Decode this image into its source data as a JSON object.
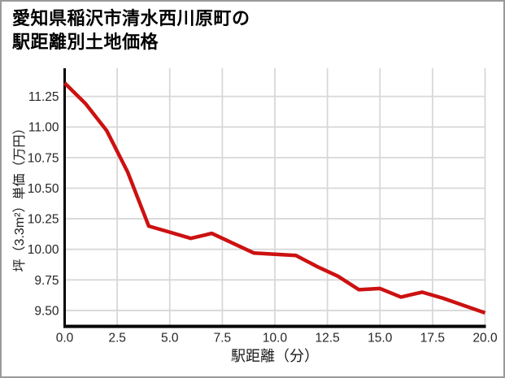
{
  "page": {
    "background": "#ffffff",
    "border_color": "#9a9a9a"
  },
  "header": {
    "title": "愛知県稲沢市清水西川原町の\n駅距離別土地価格"
  },
  "chart_data": {
    "type": "line",
    "title": "愛知県稲沢市清水西川原町の駅距離別土地価格",
    "xlabel": "駅距離（分）",
    "ylabel": "坪（3.3m²）単価（万円）",
    "x": [
      0,
      1,
      2,
      3,
      4,
      5,
      6,
      7,
      8,
      9,
      10,
      11,
      12,
      13,
      14,
      15,
      16,
      17,
      18,
      19,
      20
    ],
    "y": [
      11.36,
      11.19,
      10.97,
      10.63,
      10.19,
      10.14,
      10.09,
      10.13,
      10.05,
      9.97,
      9.96,
      9.95,
      9.86,
      9.78,
      9.67,
      9.68,
      9.61,
      9.65,
      9.6,
      9.54,
      9.48
    ],
    "xlim": [
      0,
      20
    ],
    "ylim": [
      9.37,
      11.48
    ],
    "xticks": [
      0,
      2.5,
      5,
      7.5,
      10,
      12.5,
      15,
      17.5,
      20
    ],
    "xtick_labels": [
      "0.0",
      "2.5",
      "5.0",
      "7.5",
      "10.0",
      "12.5",
      "15.0",
      "17.5",
      "20.0"
    ],
    "yticks": [
      9.5,
      9.75,
      10.0,
      10.25,
      10.5,
      10.75,
      11.0,
      11.25
    ],
    "ytick_labels": [
      "9.50",
      "9.75",
      "10.00",
      "10.25",
      "10.50",
      "10.75",
      "11.00",
      "11.25"
    ],
    "grid": true,
    "legend": "none",
    "line_color": "#cc1111",
    "axis_color": "#000000",
    "grid_color": "#d8d8d8",
    "tick_label_color": "#262626"
  }
}
